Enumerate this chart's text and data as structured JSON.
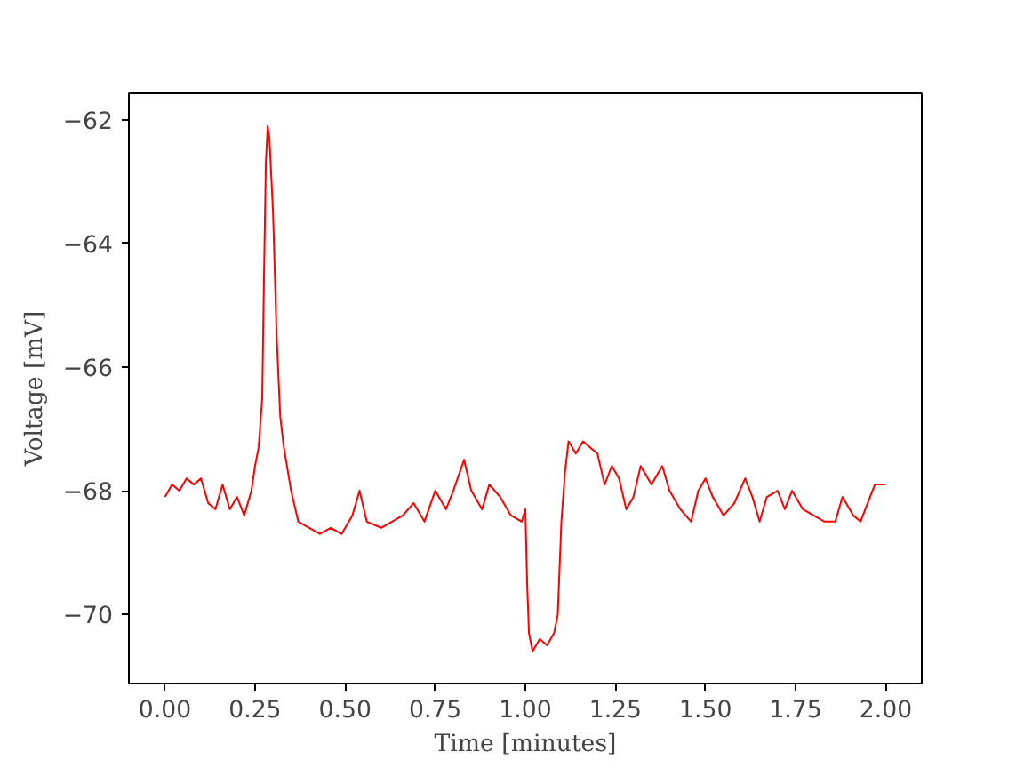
{
  "chart_data": {
    "type": "line",
    "xlabel": "Time [minutes]",
    "ylabel": "Voltage [mV]",
    "grid": false,
    "marker": "none",
    "line_style": "solid",
    "xlim": [
      -0.1,
      2.1
    ],
    "ylim": [
      -71.12,
      -61.57
    ],
    "xticks": [
      {
        "value": 0,
        "label": "0.00"
      },
      {
        "value": 0.25,
        "label": "0.25"
      },
      {
        "value": 0.5,
        "label": "0.50"
      },
      {
        "value": 0.75,
        "label": "0.75"
      },
      {
        "value": 1,
        "label": "1.00"
      },
      {
        "value": 1.25,
        "label": "1.25"
      },
      {
        "value": 1.5,
        "label": "1.50"
      },
      {
        "value": 1.75,
        "label": "1.75"
      },
      {
        "value": 2,
        "label": "2.00"
      }
    ],
    "yticks": [
      {
        "value": -70,
        "label": "−70"
      },
      {
        "value": -68,
        "label": "−68"
      },
      {
        "value": -66,
        "label": "−66"
      },
      {
        "value": -64,
        "label": "−64"
      },
      {
        "value": -62,
        "label": "−62"
      }
    ],
    "x": [
      0.0,
      0.02,
      0.04,
      0.06,
      0.08,
      0.1,
      0.12,
      0.14,
      0.16,
      0.18,
      0.2,
      0.22,
      0.24,
      0.25,
      0.26,
      0.27,
      0.275,
      0.28,
      0.285,
      0.29,
      0.3,
      0.31,
      0.32,
      0.33,
      0.35,
      0.37,
      0.4,
      0.43,
      0.46,
      0.49,
      0.52,
      0.54,
      0.56,
      0.6,
      0.63,
      0.66,
      0.69,
      0.72,
      0.75,
      0.78,
      0.8,
      0.83,
      0.85,
      0.88,
      0.9,
      0.93,
      0.96,
      0.99,
      1.0,
      1.005,
      1.01,
      1.02,
      1.04,
      1.06,
      1.08,
      1.09,
      1.1,
      1.11,
      1.12,
      1.14,
      1.16,
      1.18,
      1.2,
      1.22,
      1.24,
      1.26,
      1.28,
      1.3,
      1.32,
      1.35,
      1.38,
      1.4,
      1.43,
      1.46,
      1.48,
      1.5,
      1.52,
      1.55,
      1.58,
      1.61,
      1.63,
      1.65,
      1.67,
      1.7,
      1.72,
      1.74,
      1.77,
      1.8,
      1.83,
      1.86,
      1.88,
      1.91,
      1.93,
      1.95,
      1.97,
      2.0
    ],
    "series": [
      {
        "color": "#ff0000",
        "values": [
          -68.1,
          -67.9,
          -68.0,
          -67.8,
          -67.9,
          -67.8,
          -68.2,
          -68.3,
          -67.9,
          -68.3,
          -68.1,
          -68.4,
          -68.0,
          -67.6,
          -67.3,
          -66.5,
          -64.5,
          -62.7,
          -62.1,
          -62.3,
          -63.5,
          -65.5,
          -66.8,
          -67.3,
          -68.0,
          -68.5,
          -68.6,
          -68.7,
          -68.6,
          -68.7,
          -68.4,
          -68.0,
          -68.5,
          -68.6,
          -68.5,
          -68.4,
          -68.2,
          -68.5,
          -68.0,
          -68.3,
          -68.0,
          -67.5,
          -68.0,
          -68.3,
          -67.9,
          -68.1,
          -68.4,
          -68.5,
          -68.3,
          -69.5,
          -70.3,
          -70.6,
          -70.4,
          -70.5,
          -70.3,
          -70.0,
          -68.5,
          -67.7,
          -67.2,
          -67.4,
          -67.2,
          -67.3,
          -67.4,
          -67.9,
          -67.6,
          -67.8,
          -68.3,
          -68.1,
          -67.6,
          -67.9,
          -67.6,
          -68.0,
          -68.3,
          -68.5,
          -68.0,
          -67.8,
          -68.1,
          -68.4,
          -68.2,
          -67.8,
          -68.1,
          -68.5,
          -68.1,
          -68.0,
          -68.3,
          -68.0,
          -68.3,
          -68.4,
          -68.5,
          -68.5,
          -68.1,
          -68.4,
          -68.5,
          -68.2,
          -67.9,
          -67.9
        ]
      }
    ]
  }
}
